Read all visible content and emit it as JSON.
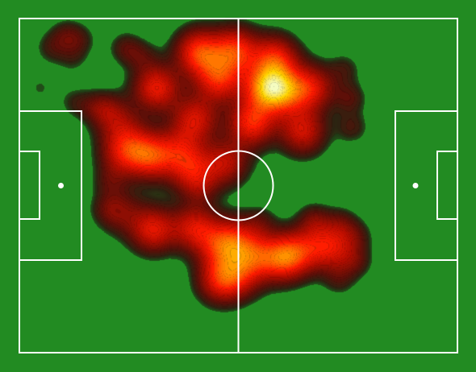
{
  "chart_data": {
    "type": "heatmap",
    "title": "",
    "xlabel": "",
    "ylabel": "",
    "x_range": [
      0,
      120
    ],
    "y_range": [
      0,
      80
    ],
    "grid": false,
    "legend": "none",
    "colors": {
      "pitch": "#228b22",
      "lines": "#ffffff",
      "ramp": [
        "#1c2a14",
        "#5a0f08",
        "#b30d00",
        "#ff1a00",
        "#ff7a00",
        "#ffd400",
        "#f4ffd0"
      ]
    },
    "hotspots": [
      {
        "x": 49.0,
        "y": 72.0,
        "w": 0.85
      },
      {
        "x": 59.0,
        "y": 72.5,
        "w": 0.8
      },
      {
        "x": 70.0,
        "y": 70.5,
        "w": 0.75
      },
      {
        "x": 67.5,
        "y": 63.5,
        "w": 0.95
      },
      {
        "x": 72.5,
        "y": 62.5,
        "w": 0.7
      },
      {
        "x": 54.5,
        "y": 65.5,
        "w": 0.75
      },
      {
        "x": 37.5,
        "y": 63.5,
        "w": 0.75
      },
      {
        "x": 48.0,
        "y": 56.0,
        "w": 0.65
      },
      {
        "x": 63.5,
        "y": 55.0,
        "w": 0.8
      },
      {
        "x": 77.5,
        "y": 53.0,
        "w": 0.65
      },
      {
        "x": 80.0,
        "y": 63.5,
        "w": 0.65
      },
      {
        "x": 44.0,
        "y": 48.5,
        "w": 0.5
      },
      {
        "x": 36.0,
        "y": 47.0,
        "w": 0.75
      },
      {
        "x": 47.5,
        "y": 43.0,
        "w": 0.6
      },
      {
        "x": 56.5,
        "y": 45.5,
        "w": 0.55
      },
      {
        "x": 30.5,
        "y": 50.0,
        "w": 0.4
      },
      {
        "x": 27.5,
        "y": 34.0,
        "w": 0.35
      },
      {
        "x": 36.5,
        "y": 29.5,
        "w": 0.7
      },
      {
        "x": 48.0,
        "y": 30.0,
        "w": 0.65
      },
      {
        "x": 55.0,
        "y": 25.5,
        "w": 0.6
      },
      {
        "x": 59.5,
        "y": 27.5,
        "w": 0.45
      },
      {
        "x": 64.0,
        "y": 23.5,
        "w": 0.55
      },
      {
        "x": 71.5,
        "y": 22.5,
        "w": 0.7
      },
      {
        "x": 76.0,
        "y": 24.0,
        "w": 0.55
      },
      {
        "x": 83.0,
        "y": 26.5,
        "w": 0.4
      },
      {
        "x": 86.5,
        "y": 24.5,
        "w": 0.4
      },
      {
        "x": 55.0,
        "y": 17.5,
        "w": 0.7
      },
      {
        "x": 60.5,
        "y": 18.5,
        "w": 0.45
      },
      {
        "x": 26.5,
        "y": 55.5,
        "w": 0.4
      },
      {
        "x": 27.5,
        "y": 47.0,
        "w": 0.4
      }
    ],
    "tendrils": [
      {
        "x": 8.5,
        "y": 73.0,
        "w": 0.18
      },
      {
        "x": 12.5,
        "y": 76.0,
        "w": 0.22
      },
      {
        "x": 16.5,
        "y": 75.0,
        "w": 0.18
      },
      {
        "x": 14.5,
        "y": 70.5,
        "w": 0.14
      },
      {
        "x": 5.5,
        "y": 63.5,
        "w": 0.12
      },
      {
        "x": 15.0,
        "y": 60.0,
        "w": 0.16
      },
      {
        "x": 20.5,
        "y": 59.0,
        "w": 0.2
      },
      {
        "x": 24.0,
        "y": 58.5,
        "w": 0.18
      },
      {
        "x": 29.0,
        "y": 73.0,
        "w": 0.25
      },
      {
        "x": 33.5,
        "y": 71.0,
        "w": 0.2
      },
      {
        "x": 24.5,
        "y": 41.0,
        "w": 0.18
      },
      {
        "x": 24.0,
        "y": 34.5,
        "w": 0.14
      },
      {
        "x": 50.0,
        "y": 39.0,
        "w": 0.14
      },
      {
        "x": 66.0,
        "y": 31.5,
        "w": 0.18
      },
      {
        "x": 80.5,
        "y": 32.0,
        "w": 0.25
      },
      {
        "x": 88.0,
        "y": 31.0,
        "w": 0.2
      },
      {
        "x": 92.0,
        "y": 28.0,
        "w": 0.2
      },
      {
        "x": 92.0,
        "y": 22.0,
        "w": 0.22
      },
      {
        "x": 87.5,
        "y": 17.5,
        "w": 0.18
      },
      {
        "x": 90.5,
        "y": 61.0,
        "w": 0.25
      },
      {
        "x": 91.0,
        "y": 54.0,
        "w": 0.22
      },
      {
        "x": 89.0,
        "y": 68.0,
        "w": 0.18
      }
    ]
  }
}
